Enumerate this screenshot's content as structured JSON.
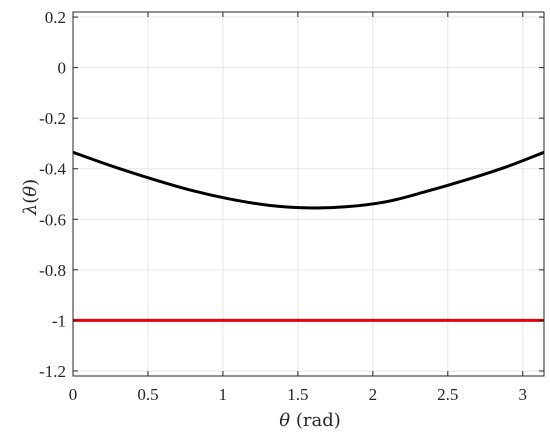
{
  "chart_data": {
    "type": "line",
    "xlabel_symbol": "θ",
    "xlabel_unit": " (rad)",
    "ylabel_symbol": "λ",
    "ylabel_paren_open": "(",
    "ylabel_arg": "θ",
    "ylabel_paren_close": ")",
    "xlim": [
      0,
      3.1416
    ],
    "ylim": [
      -1.22,
      0.22
    ],
    "grid": true,
    "x_ticks": [
      0,
      0.5,
      1,
      1.5,
      2,
      2.5,
      3
    ],
    "x_tick_labels": [
      "0",
      "0.5",
      "1",
      "1.5",
      "2",
      "2.5",
      "3"
    ],
    "y_ticks": [
      0.2,
      0,
      -0.2,
      -0.4,
      -0.6,
      -0.8,
      -1,
      -1.2
    ],
    "y_tick_labels": [
      "0.2",
      "0",
      "-0.2",
      "-0.4",
      "-0.6",
      "-0.8",
      "-1",
      "-1.2"
    ],
    "series": [
      {
        "color": "#000000",
        "x": [
          0,
          0.2618,
          0.5236,
          0.7854,
          1.0472,
          1.309,
          1.5708,
          1.8326,
          2.0944,
          2.3562,
          2.618,
          2.8798,
          3.1416
        ],
        "values": [
          -0.335,
          -0.39,
          -0.44,
          -0.485,
          -0.52,
          -0.545,
          -0.555,
          -0.55,
          -0.53,
          -0.49,
          -0.445,
          -0.395,
          -0.335
        ]
      },
      {
        "color": "#e8000b",
        "x": [
          0,
          3.1416
        ],
        "values": [
          -1,
          -1
        ]
      }
    ]
  }
}
